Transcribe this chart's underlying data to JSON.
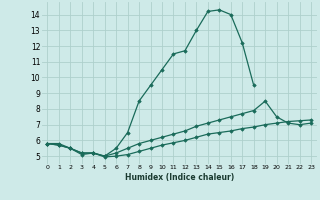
{
  "xlabel": "Humidex (Indice chaleur)",
  "background_color": "#ceeae8",
  "grid_color": "#aed0cc",
  "line_color": "#1a6b5a",
  "xlim": [
    -0.5,
    23.5
  ],
  "ylim": [
    4.5,
    14.8
  ],
  "xtick_vals": [
    0,
    1,
    2,
    3,
    4,
    5,
    6,
    7,
    8,
    9,
    10,
    11,
    12,
    13,
    14,
    15,
    16,
    17,
    18,
    19,
    20,
    21,
    22,
    23
  ],
  "ytick_vals": [
    5,
    6,
    7,
    8,
    9,
    10,
    11,
    12,
    13,
    14
  ],
  "line1_x": [
    0,
    1,
    2,
    3,
    4,
    5,
    6,
    7,
    8,
    9,
    10,
    11,
    12,
    13,
    14,
    15,
    16,
    17,
    18
  ],
  "line1_y": [
    5.8,
    5.8,
    5.5,
    5.1,
    5.2,
    5.0,
    5.5,
    6.5,
    8.5,
    9.5,
    10.5,
    11.5,
    11.7,
    13.0,
    14.2,
    14.3,
    14.0,
    12.2,
    9.5
  ],
  "line2_x": [
    0,
    1,
    2,
    3,
    4,
    5,
    6,
    7,
    8,
    9,
    10,
    11,
    12,
    13,
    14,
    15,
    16,
    17,
    18,
    19,
    20,
    21,
    22,
    23
  ],
  "line2_y": [
    5.8,
    5.7,
    5.5,
    5.2,
    5.2,
    5.0,
    5.2,
    5.5,
    5.8,
    6.0,
    6.2,
    6.4,
    6.6,
    6.9,
    7.1,
    7.3,
    7.5,
    7.7,
    7.9,
    8.5,
    7.5,
    7.1,
    7.0,
    7.1
  ],
  "line3_x": [
    0,
    1,
    2,
    3,
    4,
    5,
    6,
    7,
    8,
    9,
    10,
    11,
    12,
    13,
    14,
    15,
    16,
    17,
    18,
    19,
    20,
    21,
    22,
    23
  ],
  "line3_y": [
    5.8,
    5.7,
    5.5,
    5.2,
    5.2,
    4.95,
    5.0,
    5.1,
    5.3,
    5.5,
    5.7,
    5.85,
    6.0,
    6.2,
    6.4,
    6.5,
    6.6,
    6.75,
    6.85,
    7.0,
    7.1,
    7.2,
    7.25,
    7.3
  ]
}
